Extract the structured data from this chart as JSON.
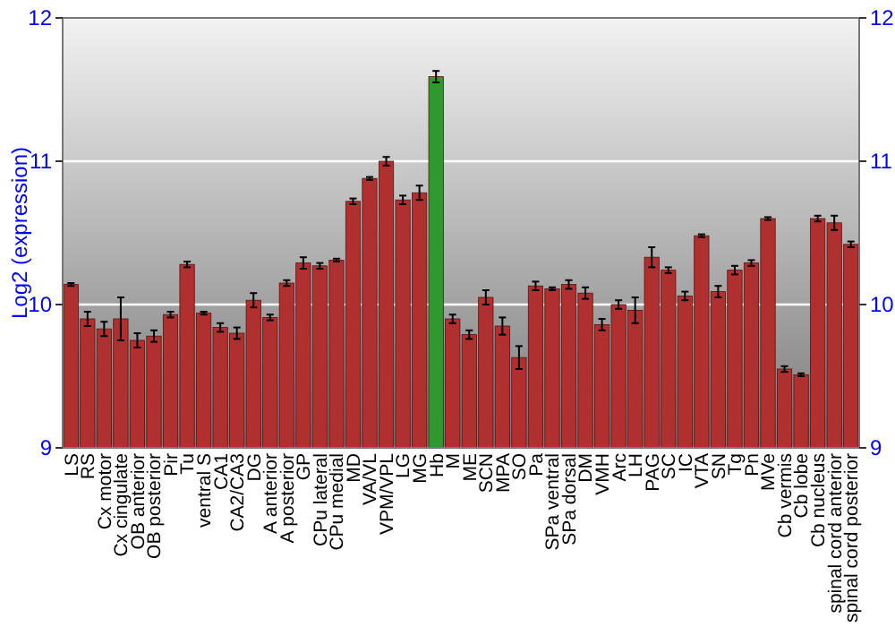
{
  "chart_data": {
    "type": "bar",
    "ylabel": "Log2 (expression)",
    "categories": [
      "LS",
      "RS",
      "Cx motor",
      "Cx cingulate",
      "OB anterior",
      "OB posterior",
      "Pir",
      "Tu",
      "ventral S",
      "CA1",
      "CA2/CA3",
      "DG",
      "A anterior",
      "A posterior",
      "GP",
      "CPu lateral",
      "CPu medial",
      "MD",
      "VA/VL",
      "VPM/VPL",
      "LG",
      "MG",
      "Hb",
      "M",
      "ME",
      "SCN",
      "MPA",
      "SO",
      "Pa",
      "SPa ventral",
      "SPa dorsal",
      "DM",
      "VMH",
      "Arc",
      "LH",
      "PAG",
      "SC",
      "IC",
      "VTA",
      "SN",
      "Tg",
      "Pn",
      "MVe",
      "Cb vermis",
      "Cb lobe",
      "Cb nucleus",
      "spinal cord anterior",
      "spinal cord posterior"
    ],
    "values": [
      10.14,
      9.9,
      9.83,
      9.9,
      9.75,
      9.78,
      9.93,
      10.28,
      9.94,
      9.84,
      9.8,
      10.03,
      9.91,
      10.15,
      10.29,
      10.27,
      10.31,
      10.72,
      10.88,
      11.0,
      10.73,
      10.78,
      11.59,
      9.9,
      9.79,
      10.05,
      9.85,
      9.63,
      10.13,
      10.11,
      10.14,
      10.08,
      9.86,
      10.0,
      9.96,
      10.33,
      10.24,
      10.06,
      10.48,
      10.09,
      10.24,
      10.29,
      10.6,
      9.55,
      9.51,
      10.6,
      10.57,
      10.42
    ],
    "errors": [
      0.01,
      0.05,
      0.05,
      0.15,
      0.05,
      0.04,
      0.02,
      0.02,
      0.01,
      0.03,
      0.04,
      0.05,
      0.02,
      0.02,
      0.04,
      0.02,
      0.01,
      0.02,
      0.01,
      0.03,
      0.03,
      0.05,
      0.04,
      0.03,
      0.03,
      0.05,
      0.06,
      0.08,
      0.03,
      0.01,
      0.03,
      0.04,
      0.04,
      0.03,
      0.09,
      0.07,
      0.02,
      0.03,
      0.01,
      0.04,
      0.03,
      0.02,
      0.01,
      0.02,
      0.01,
      0.02,
      0.05,
      0.02
    ],
    "colors": [
      "#b03030",
      "#b03030",
      "#b03030",
      "#b03030",
      "#b03030",
      "#b03030",
      "#b03030",
      "#b03030",
      "#b03030",
      "#b03030",
      "#b03030",
      "#b03030",
      "#b03030",
      "#b03030",
      "#b03030",
      "#b03030",
      "#b03030",
      "#b03030",
      "#b03030",
      "#b03030",
      "#b03030",
      "#b03030",
      "#2e9a2e",
      "#b03030",
      "#b03030",
      "#b03030",
      "#b03030",
      "#b03030",
      "#b03030",
      "#b03030",
      "#b03030",
      "#b03030",
      "#b03030",
      "#b03030",
      "#b03030",
      "#b03030",
      "#b03030",
      "#b03030",
      "#b03030",
      "#b03030",
      "#b03030",
      "#b03030",
      "#b03030",
      "#b03030",
      "#b03030",
      "#b03030",
      "#b03030",
      "#b03030"
    ],
    "ylim": [
      9,
      12
    ],
    "yticks": [
      9,
      10,
      11,
      12
    ],
    "y2lim": [
      9,
      12
    ],
    "y2ticks": [
      9,
      10,
      11,
      12
    ],
    "grid": "y"
  }
}
